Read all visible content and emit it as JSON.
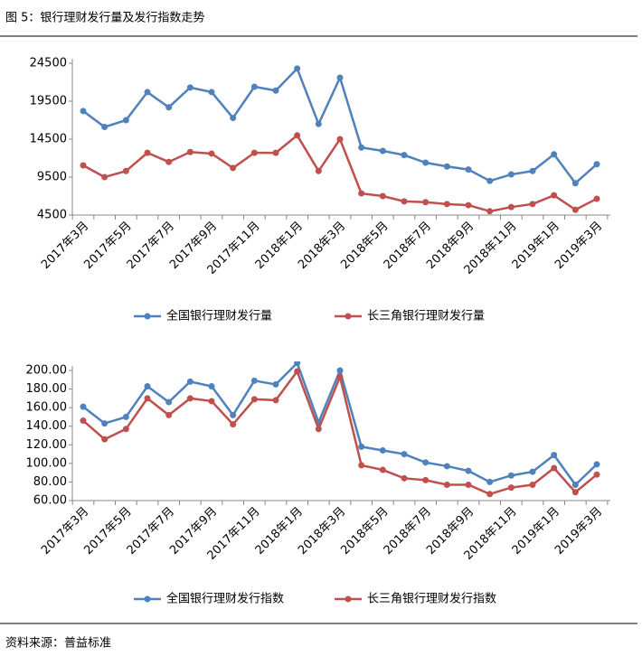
{
  "header": {
    "title": "图 5：银行理财发行量及发行指数走势"
  },
  "footer": {
    "source": "资料来源：普益标准"
  },
  "chart_data": [
    {
      "type": "line",
      "ylim": [
        4500,
        24500
      ],
      "yticks": [
        4500,
        9500,
        14500,
        19500,
        24500
      ],
      "categories": [
        "2017年3月",
        null,
        "2017年5月",
        null,
        "2017年7月",
        null,
        "2017年9月",
        null,
        "2017年11月",
        null,
        "2018年1月",
        null,
        "2018年3月",
        null,
        "2018年5月",
        null,
        "2018年7月",
        null,
        "2018年9月",
        null,
        "2018年11月",
        null,
        "2019年1月",
        null,
        "2019年3月"
      ],
      "series": [
        {
          "name": "全国银行理财发行量",
          "color": "#4f81bd",
          "values": [
            18200,
            16100,
            17000,
            20700,
            18700,
            21300,
            20700,
            17300,
            21400,
            20900,
            23800,
            16500,
            22600,
            13400,
            12950,
            12400,
            11400,
            10900,
            10500,
            9000,
            9850,
            10300,
            12500,
            8700,
            11200
          ]
        },
        {
          "name": "长三角银行理财发行量",
          "color": "#c0504d",
          "values": [
            11050,
            9500,
            10300,
            12700,
            11500,
            12800,
            12600,
            10700,
            12700,
            12700,
            15000,
            10300,
            14500,
            7350,
            7000,
            6300,
            6200,
            5950,
            5800,
            5000,
            5550,
            5950,
            7100,
            5200,
            6650
          ]
        }
      ]
    },
    {
      "type": "line",
      "ylim": [
        60,
        200
      ],
      "yticks": [
        {
          "value": 60,
          "label": "60.00"
        },
        {
          "value": 80,
          "label": "80.00"
        },
        {
          "value": 100,
          "label": "100.00"
        },
        {
          "value": 120,
          "label": "120.00"
        },
        {
          "value": 140,
          "label": "140.00"
        },
        {
          "value": 160,
          "label": "160.00"
        },
        {
          "value": 180,
          "label": "180.00"
        },
        {
          "value": 200,
          "label": "200.00"
        }
      ],
      "categories": [
        "2017年3月",
        null,
        "2017年5月",
        null,
        "2017年7月",
        null,
        "2017年9月",
        null,
        "2017年11月",
        null,
        "2018年1月",
        null,
        "2018年3月",
        null,
        "2018年5月",
        null,
        "2018年7月",
        null,
        "2018年9月",
        null,
        "2018年11月",
        null,
        "2019年1月",
        null,
        "2019年3月"
      ],
      "series": [
        {
          "name": "全国银行理财发行指数",
          "color": "#4f81bd",
          "values": [
            161,
            143,
            150,
            183,
            166,
            188,
            183,
            152,
            189,
            185,
            208,
            144,
            200,
            118,
            114,
            110,
            101,
            97,
            92,
            80,
            87,
            91,
            109,
            77,
            99
          ]
        },
        {
          "name": "长三角银行理财发行指数",
          "color": "#c0504d",
          "values": [
            146,
            126,
            137,
            170,
            152,
            170,
            167,
            142,
            169,
            168,
            199,
            137,
            193,
            98,
            93,
            84,
            82,
            77,
            77,
            67,
            74,
            77,
            95,
            69,
            88
          ]
        }
      ]
    }
  ]
}
